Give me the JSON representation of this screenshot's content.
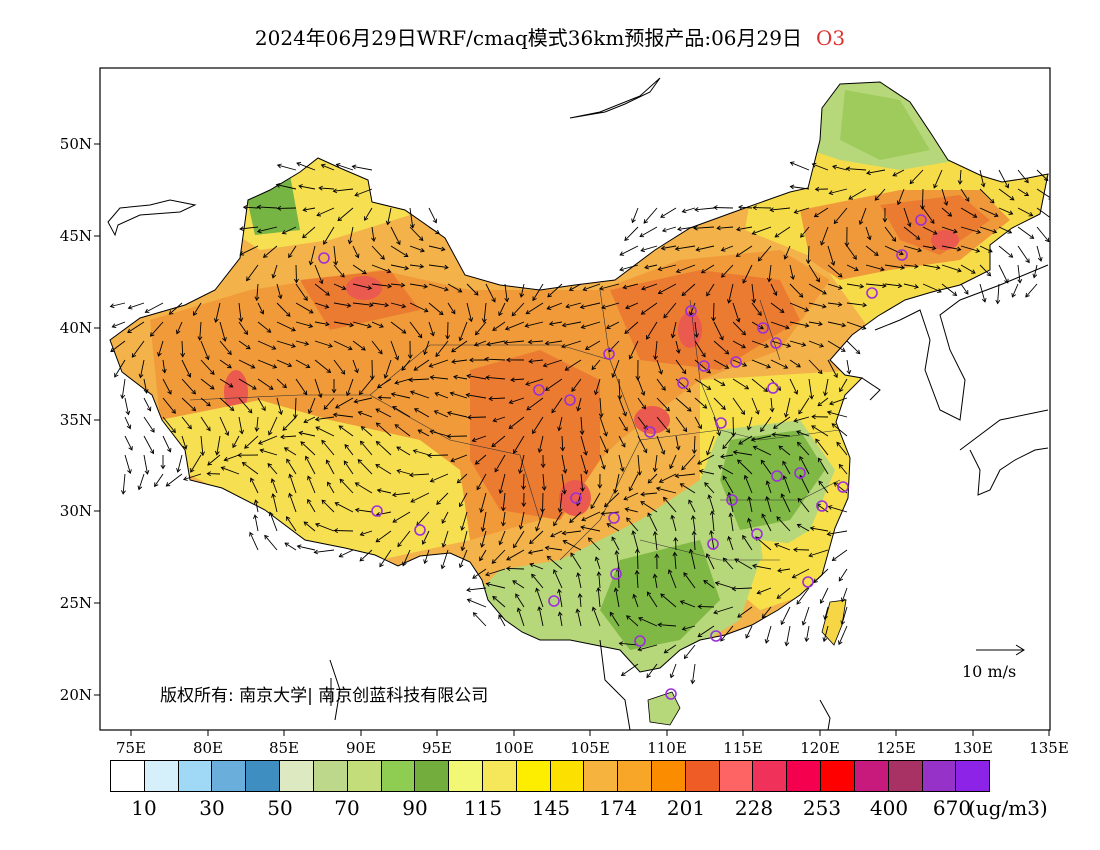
{
  "title": {
    "main": "2024年06月29日WRF/cmaq模式36km预报产品:06月29日",
    "species": "O3"
  },
  "map": {
    "lat_labels": [
      "50N",
      "45N",
      "40N",
      "35N",
      "30N",
      "25N",
      "20N"
    ],
    "lon_labels": [
      "75E",
      "80E",
      "85E",
      "90E",
      "95E",
      "100E",
      "105E",
      "110E",
      "115E",
      "120E",
      "125E",
      "130E",
      "135E"
    ],
    "copyright": "版权所有: 南京大学| 南京创蓝科技有限公司",
    "wind_reference": "10 m/s"
  },
  "legend": {
    "colors": [
      "#ffffff",
      "#d6f0fb",
      "#9fd9f5",
      "#6aaedc",
      "#3f8ec2",
      "#dde9c0",
      "#bdd88a",
      "#c2dd79",
      "#8fcd52",
      "#72ad3d",
      "#f2f774",
      "#f5e65a",
      "#fdee00",
      "#fbe000",
      "#f6b43e",
      "#f7a628",
      "#fb8c00",
      "#ef5c26",
      "#ff6464",
      "#f0325a",
      "#f5004e",
      "#ff0000",
      "#c8197d",
      "#a83264",
      "#9632c8",
      "#8c23e6"
    ],
    "labels": [
      "10",
      "30",
      "50",
      "70",
      "90",
      "115",
      "145",
      "174",
      "201",
      "228",
      "253",
      "400",
      "670"
    ],
    "unit": "(ug/m3)"
  },
  "colors": {
    "orange": "#f19a3a",
    "deep_orange": "#ec7b32",
    "yellow": "#f7e24a",
    "light_green": "#b6d77a",
    "green": "#7fb845",
    "red": "#ea5a4e",
    "city_marker": "#9b30d9"
  }
}
